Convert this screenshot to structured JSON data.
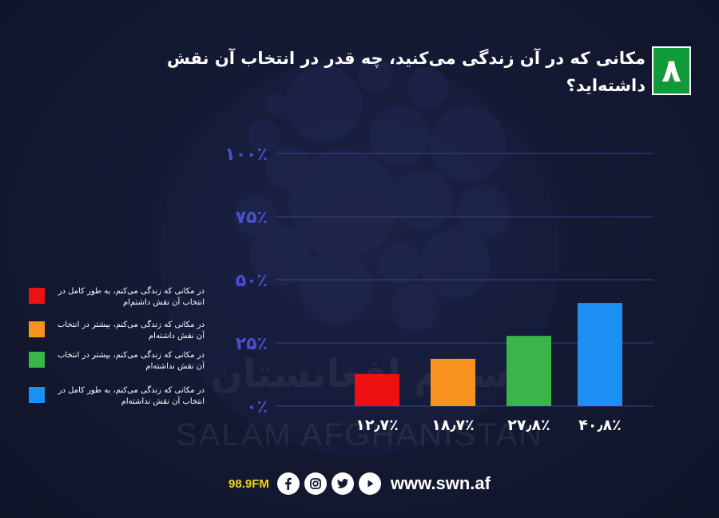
{
  "title": "مکانی که در آن زندگی می‌کنید، چه قدر در انتخاب آن نقش داشته‌اید؟",
  "question_number": "۸",
  "colors": {
    "background": "#141a33",
    "badge": "#0f9b3a",
    "fm": "#f0d21c",
    "axis_text": "#4a4fd0"
  },
  "chart_data": {
    "type": "bar",
    "categories": [
      "۱۲٫۷٪",
      "۱۸٫۷٪",
      "۲۷٫۸٪",
      "۴۰٫۸٪"
    ],
    "values": [
      12.7,
      18.7,
      27.8,
      40.8
    ],
    "colors": [
      "#ee1111",
      "#f7931e",
      "#39b54a",
      "#1c8ff2"
    ],
    "ylim": [
      0,
      100
    ],
    "yticks": [
      0,
      25,
      50,
      75,
      100
    ],
    "ytick_labels": [
      "۰٪",
      "۲۵٪",
      "۵۰٪",
      "۷۵٪",
      "۱۰۰٪"
    ],
    "grid": true,
    "legend_position": "left"
  },
  "legend": [
    {
      "color": "#ee1111",
      "text": "در مکانی که زندگی می‌کنم، به طور کامل در انتخاب آن نقش داشتم‌ام"
    },
    {
      "color": "#f7931e",
      "text": "در مکانی که زندگی می‌کنم، بیشتر در انتخاب آن نقش داشته‌ام"
    },
    {
      "color": "#39b54a",
      "text": "در مکانی که زندگی می‌کنم، بیشتر در انتخاب آن نقش نداشته‌ام"
    },
    {
      "color": "#1c8ff2",
      "text": "در مکانی که زندگی می‌کنم، به طور کامل در انتخاب آن نقش نداشته‌ام"
    }
  ],
  "watermark": {
    "persian": "سلام افغانستان",
    "english": "SALAM AFGHANISTAN"
  },
  "footer": {
    "fm": "98.9FM",
    "icons": [
      "facebook-icon",
      "instagram-icon",
      "twitter-icon",
      "youtube-icon"
    ],
    "website": "www.swn.af"
  }
}
